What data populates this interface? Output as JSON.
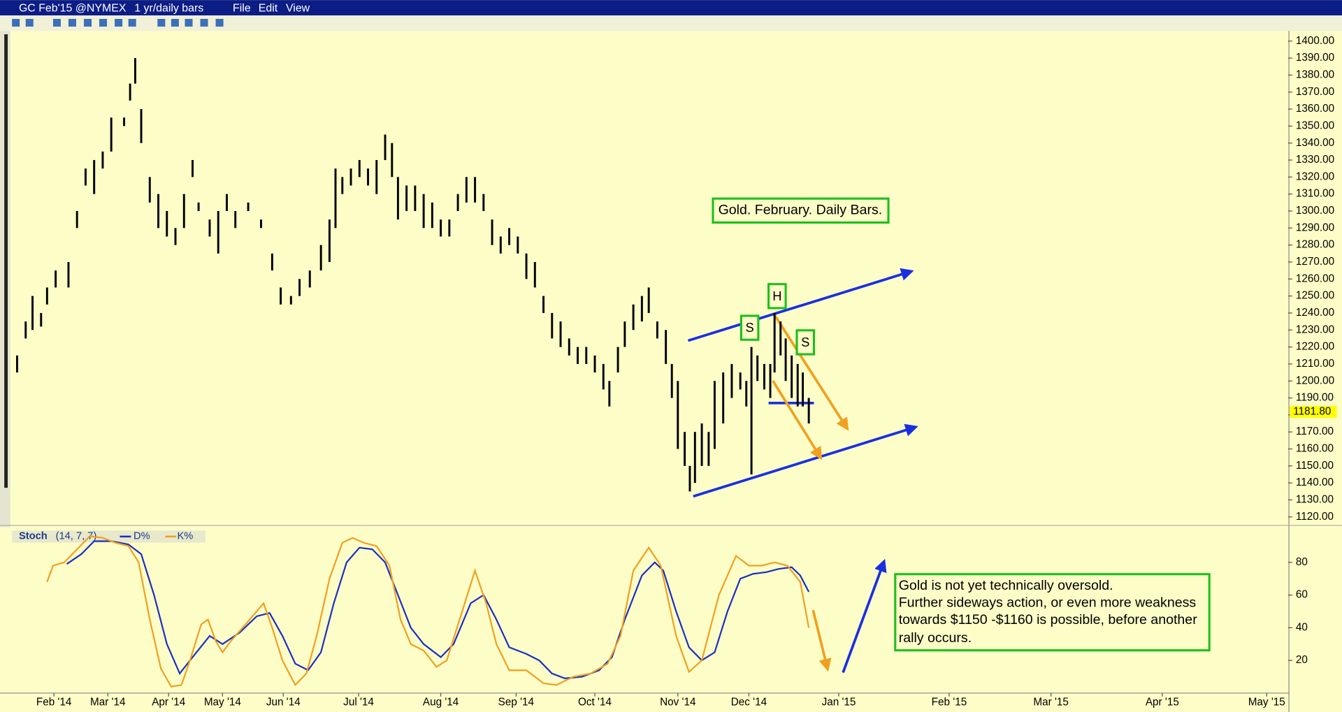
{
  "window": {
    "symbol": "GC Feb'15 @NYMEX",
    "period": "1 yr/daily bars",
    "menu": [
      "File",
      "Edit",
      "View"
    ]
  },
  "chart_data": [
    {
      "type": "hlbar",
      "title": "Gold. February. Daily Bars.",
      "color": "#000000",
      "annotations": [
        "S",
        "H",
        "S"
      ],
      "x": [
        2,
        4,
        5.6,
        7.6,
        9,
        11,
        14,
        16,
        18,
        20,
        22,
        24,
        27,
        28.4,
        29.6,
        31,
        33,
        35,
        37,
        39,
        41,
        43,
        44.4,
        47,
        49,
        51,
        53,
        56,
        59,
        61.6,
        63.6,
        66,
        68,
        70.4,
        73,
        75,
        76.4,
        78,
        80,
        82,
        84,
        86,
        88,
        89.6,
        91,
        93,
        95,
        97,
        99,
        101,
        103,
        105,
        107,
        109,
        111,
        113,
        115,
        117,
        119,
        121,
        123,
        125,
        127,
        129,
        131,
        133,
        135,
        137,
        139,
        140.4,
        142.4,
        144,
        146,
        148,
        149.6,
        151.6,
        153.6,
        155,
        156.4,
        158,
        159.2,
        160.4,
        162,
        163.6,
        165,
        167,
        169,
        171,
        172.4,
        173.6,
        175,
        176.6,
        178,
        179,
        180.4,
        181.6,
        183,
        184.4,
        185.6,
        187
      ],
      "high": [
        1215,
        1235,
        1250,
        1240,
        1255,
        1265,
        1270,
        1300,
        1325,
        1330,
        1335,
        1355,
        1355,
        1375,
        1390,
        1360,
        1320,
        1310,
        1300,
        1290,
        1310,
        1330,
        1305,
        1295,
        1300,
        1310,
        1300,
        1305,
        1295,
        1275,
        1255,
        1250,
        1260,
        1265,
        1280,
        1295,
        1325,
        1320,
        1325,
        1330,
        1325,
        1330,
        1345,
        1340,
        1320,
        1315,
        1315,
        1310,
        1305,
        1295,
        1295,
        1310,
        1320,
        1320,
        1310,
        1295,
        1285,
        1290,
        1285,
        1275,
        1270,
        1250,
        1240,
        1235,
        1225,
        1220,
        1220,
        1215,
        1210,
        1200,
        1220,
        1235,
        1245,
        1250,
        1255,
        1235,
        1230,
        1210,
        1200,
        1170,
        1150,
        1170,
        1175,
        1170,
        1200,
        1205,
        1210,
        1205,
        1200,
        1220,
        1215,
        1210,
        1210,
        1240,
        1235,
        1225,
        1215,
        1210,
        1205,
        1190
      ],
      "low": [
        1205,
        1225,
        1230,
        1232,
        1245,
        1255,
        1255,
        1290,
        1315,
        1310,
        1325,
        1335,
        1350,
        1365,
        1375,
        1340,
        1305,
        1290,
        1285,
        1280,
        1290,
        1320,
        1300,
        1285,
        1275,
        1300,
        1290,
        1300,
        1290,
        1265,
        1245,
        1245,
        1250,
        1255,
        1265,
        1270,
        1290,
        1310,
        1315,
        1320,
        1315,
        1310,
        1330,
        1320,
        1295,
        1300,
        1300,
        1290,
        1290,
        1285,
        1285,
        1300,
        1305,
        1305,
        1300,
        1280,
        1275,
        1280,
        1275,
        1260,
        1255,
        1240,
        1225,
        1220,
        1215,
        1210,
        1210,
        1205,
        1195,
        1185,
        1205,
        1220,
        1230,
        1235,
        1240,
        1225,
        1210,
        1190,
        1160,
        1150,
        1135,
        1140,
        1150,
        1150,
        1160,
        1175,
        1190,
        1195,
        1185,
        1145,
        1200,
        1195,
        1190,
        1205,
        1215,
        1200,
        1190,
        1185,
        1185,
        1175
      ],
      "xlim": [
        0,
        299
      ],
      "ylim": [
        1115,
        1405
      ],
      "yticks": [
        {
          "value": 1120,
          "label": "1120.00"
        },
        {
          "value": 1130,
          "label": "1130.00"
        },
        {
          "value": 1140,
          "label": "1140.00"
        },
        {
          "value": 1150,
          "label": "1150.00"
        },
        {
          "value": 1160,
          "label": "1160.00"
        },
        {
          "value": 1170,
          "label": "1170.00"
        },
        {
          "value": 1180,
          "label": "1180.00"
        },
        {
          "value": 1190,
          "label": "1190.00"
        },
        {
          "value": 1200,
          "label": "1200.00"
        },
        {
          "value": 1210,
          "label": "1210.00"
        },
        {
          "value": 1220,
          "label": "1220.00"
        },
        {
          "value": 1230,
          "label": "1230.00"
        },
        {
          "value": 1240,
          "label": "1240.00"
        },
        {
          "value": 1250,
          "label": "1250.00"
        },
        {
          "value": 1260,
          "label": "1260.00"
        },
        {
          "value": 1270,
          "label": "1270.00"
        },
        {
          "value": 1280,
          "label": "1280.00"
        },
        {
          "value": 1290,
          "label": "1290.00"
        },
        {
          "value": 1300,
          "label": "1300.00"
        },
        {
          "value": 1310,
          "label": "1310.00"
        },
        {
          "value": 1320,
          "label": "1320.00"
        },
        {
          "value": 1330,
          "label": "1330.00"
        },
        {
          "value": 1340,
          "label": "1340.00"
        },
        {
          "value": 1350,
          "label": "1350.00"
        },
        {
          "value": 1360,
          "label": "1360.00"
        },
        {
          "value": 1370,
          "label": "1370.00"
        },
        {
          "value": 1380,
          "label": "1380.00"
        },
        {
          "value": 1390,
          "label": "1390.00"
        },
        {
          "value": 1400,
          "label": "1400.00"
        }
      ],
      "last_price": {
        "value": 1181.8,
        "label": "1181.80"
      }
    },
    {
      "type": "line",
      "title": "Stoch",
      "subtitle": "(14, 7, 7)",
      "note": [
        "Gold is not yet technically oversold.",
        "Further sideways action, or even more weakness",
        "towards $1150 -$1160 is possible, before another",
        "rally occurs."
      ],
      "series": [
        {
          "name": "D%",
          "color": "#1a2fc0",
          "x": [
            13.6,
            17,
            20,
            24,
            28,
            31,
            34,
            37,
            40,
            43,
            47,
            50,
            54,
            58,
            61,
            64,
            67,
            70,
            73,
            76,
            79,
            82,
            85,
            88,
            91,
            94,
            97,
            101,
            104,
            108,
            111,
            114,
            117,
            121,
            124,
            127,
            130,
            134,
            138,
            141,
            144,
            148,
            151,
            153,
            156,
            159,
            162,
            165,
            168,
            171,
            174,
            177,
            180,
            183,
            185,
            187
          ],
          "values": [
            79,
            85,
            93,
            93,
            91,
            85,
            60,
            30,
            12,
            22,
            35,
            30,
            37,
            47,
            49,
            35,
            18,
            14,
            25,
            55,
            80,
            89,
            88,
            80,
            60,
            40,
            30,
            22,
            30,
            55,
            60,
            45,
            28,
            24,
            20,
            12,
            9,
            10,
            14,
            22,
            45,
            72,
            80,
            75,
            50,
            28,
            20,
            25,
            50,
            70,
            73,
            74,
            76,
            77,
            72,
            62
          ]
        },
        {
          "name": "K%",
          "color": "#f0a020",
          "x": [
            9,
            10.4,
            13,
            16,
            19,
            22,
            25,
            28,
            30.4,
            33,
            35.6,
            38,
            40.4,
            42.4,
            45,
            46.6,
            48.4,
            50,
            52,
            56,
            59.6,
            61.6,
            64,
            67,
            69.6,
            72,
            75,
            78,
            80.4,
            83,
            86,
            89,
            91.6,
            94,
            97,
            100,
            102.4,
            106,
            109,
            111.6,
            114,
            117,
            121,
            125,
            128,
            132,
            136,
            140,
            143,
            146,
            149.6,
            152.4,
            156,
            159,
            162,
            166,
            170,
            173,
            176,
            179,
            182,
            185,
            187
          ],
          "values": [
            68,
            78,
            80,
            88,
            96,
            95,
            92,
            90,
            80,
            45,
            15,
            4,
            5,
            20,
            42,
            45,
            32,
            25,
            32,
            44,
            55,
            40,
            20,
            5,
            12,
            35,
            70,
            92,
            95,
            92,
            90,
            78,
            45,
            30,
            26,
            16,
            20,
            50,
            75,
            55,
            30,
            14,
            14,
            6,
            5,
            10,
            12,
            18,
            35,
            75,
            89,
            78,
            35,
            13,
            20,
            60,
            84,
            78,
            78,
            80,
            78,
            68,
            40
          ]
        }
      ],
      "xlim": [
        0,
        299
      ],
      "ylim": [
        0,
        100
      ],
      "yticks": [
        20,
        40,
        60,
        80
      ],
      "xticks": [
        {
          "value": 10.6,
          "label": "Feb '14"
        },
        {
          "value": 23.2,
          "label": "Mar '14"
        },
        {
          "value": 37.4,
          "label": "Apr '14"
        },
        {
          "value": 50,
          "label": "May '14"
        },
        {
          "value": 64.2,
          "label": "Jun '14"
        },
        {
          "value": 81.8,
          "label": "Jul '14"
        },
        {
          "value": 101,
          "label": "Aug '14"
        },
        {
          "value": 118.6,
          "label": "Sep '14"
        },
        {
          "value": 137,
          "label": "Oct '14"
        },
        {
          "value": 156.4,
          "label": "Nov '14"
        },
        {
          "value": 173,
          "label": "Dec '14"
        },
        {
          "value": 194,
          "label": "Jan '15"
        },
        {
          "value": 219.8,
          "label": "Feb '15"
        },
        {
          "value": 243.6,
          "label": "Mar '15"
        },
        {
          "value": 269.6,
          "label": "Apr '15"
        },
        {
          "value": 294,
          "label": "May '15"
        }
      ]
    }
  ]
}
